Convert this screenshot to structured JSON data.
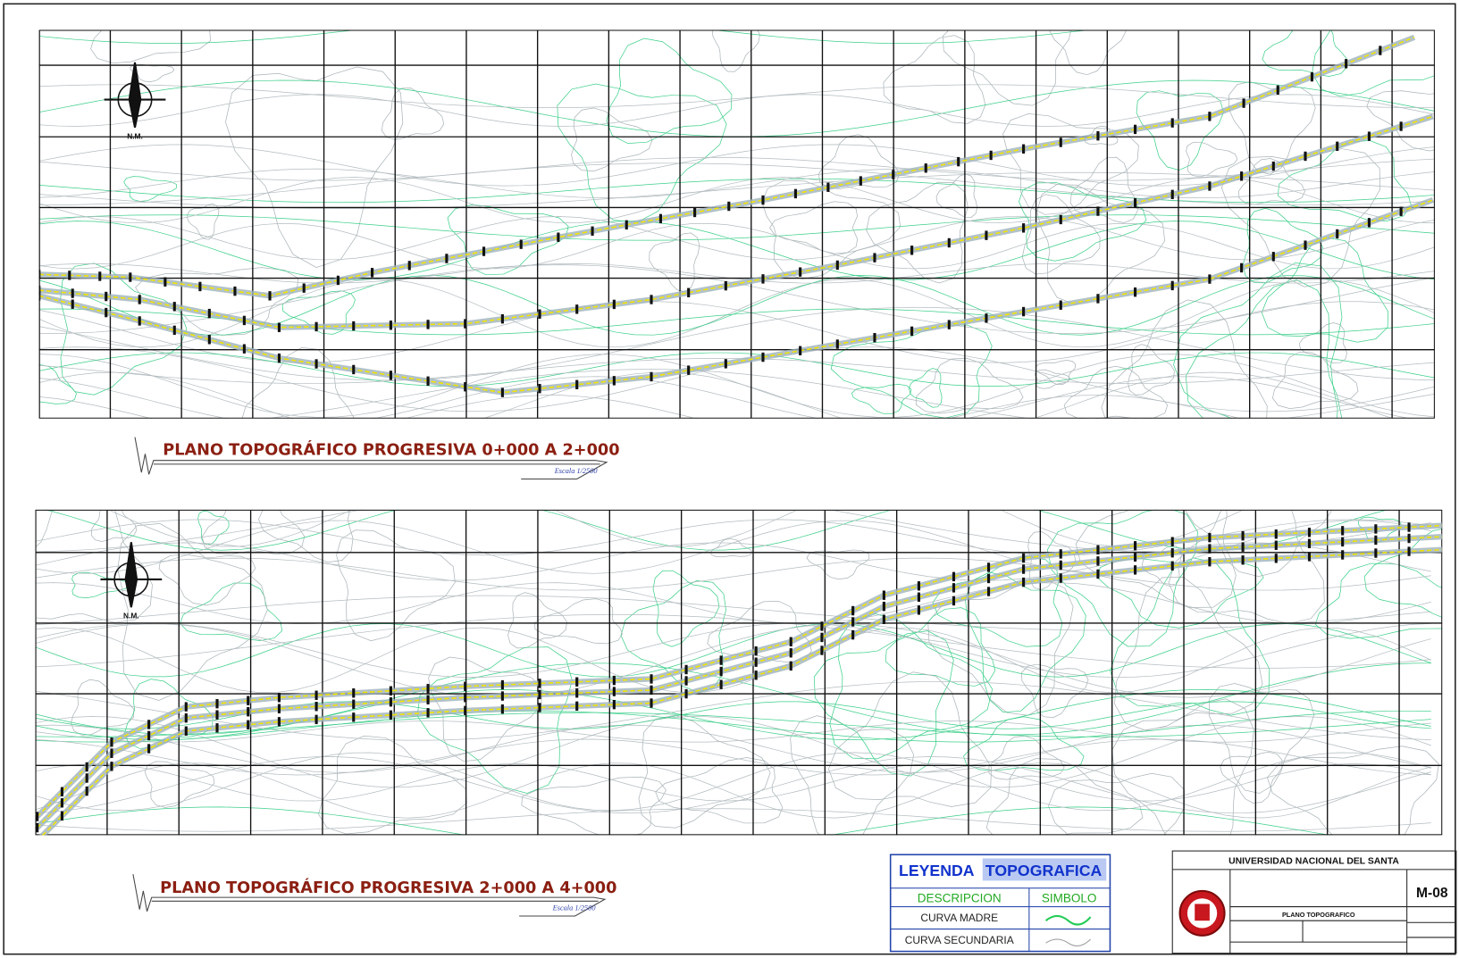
{
  "map1": {
    "title": "PLANO TOPOGRÁFICO PROGRESIVA 0+000 A 2+000",
    "scale": "Escala 1/2500",
    "north": "N.M."
  },
  "map2": {
    "title": "PLANO TOPOGRÁFICO PROGRESIVA 2+000 A 4+000",
    "scale": "Escala 1/2500",
    "north": "N.M."
  },
  "legend": {
    "title_1": "LEYENDA",
    "title_2": "TOPOGRAFICA",
    "headers": [
      "DESCRIPCION",
      "SIMBOLO"
    ],
    "rows": [
      "CURVA MADRE",
      "CURVA SECUNDARIA"
    ]
  },
  "title_block": {
    "institution": "UNIVERSIDAD NACIONAL DEL SANTA",
    "sheet": "M-08",
    "plan": "PLANO TOPOGRAFICO"
  }
}
